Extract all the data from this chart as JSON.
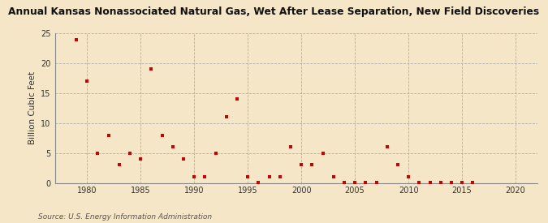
{
  "title": "Annual Kansas Nonassociated Natural Gas, Wet After Lease Separation, New Field Discoveries",
  "ylabel": "Billion Cubic Feet",
  "source": "Source: U.S. Energy Information Administration",
  "background_color": "#f5e6c8",
  "marker_color": "#cc0000",
  "xlim": [
    1977,
    2022
  ],
  "ylim": [
    0,
    25
  ],
  "xticks": [
    1980,
    1985,
    1990,
    1995,
    2000,
    2005,
    2010,
    2015,
    2020
  ],
  "yticks": [
    0,
    5,
    10,
    15,
    20,
    25
  ],
  "data": {
    "1979": 24.0,
    "1980": 17.0,
    "1981": 5.0,
    "1982": 8.0,
    "1983": 3.0,
    "1984": 5.0,
    "1985": 4.0,
    "1986": 19.0,
    "1987": 8.0,
    "1988": 6.0,
    "1989": 4.0,
    "1990": 1.0,
    "1991": 1.0,
    "1992": 5.0,
    "1993": 11.0,
    "1994": 14.0,
    "1995": 1.0,
    "1996": 0.1,
    "1997": 1.0,
    "1998": 1.0,
    "1999": 6.0,
    "2000": 3.0,
    "2001": 3.0,
    "2002": 5.0,
    "2003": 1.0,
    "2004": 0.1,
    "2005": 0.1,
    "2006": 0.1,
    "2007": 0.1,
    "2008": 6.0,
    "2009": 3.0,
    "2010": 1.0,
    "2011": 0.1,
    "2012": 0.1,
    "2013": 0.1,
    "2014": 0.1,
    "2015": 0.1,
    "2016": 0.1
  }
}
